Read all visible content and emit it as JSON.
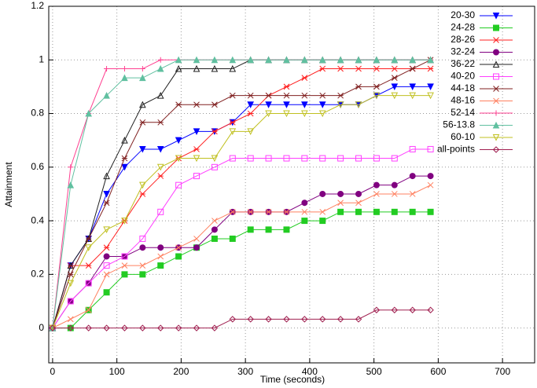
{
  "chart_data": {
    "type": "line",
    "x_label": "Time (seconds)",
    "y_label": "Attainment",
    "x": [
      0,
      28,
      56,
      84,
      112,
      140,
      168,
      196,
      224,
      252,
      280,
      308,
      336,
      364,
      392,
      420,
      448,
      476,
      504,
      532,
      560,
      588
    ],
    "xlim": [
      -6,
      750
    ],
    "ylim": [
      -0.13,
      1.2
    ],
    "xticks": [
      0,
      100,
      200,
      300,
      400,
      500,
      600,
      700
    ],
    "yticks": [
      0,
      0.2,
      0.4,
      0.6,
      0.8,
      1,
      1.2
    ],
    "grid": true,
    "legend": "top-right",
    "series": [
      {
        "name": "20-30",
        "color": "#0000ff",
        "marker": "triangle-down",
        "values": [
          0,
          0.233,
          0.333,
          0.5,
          0.6,
          0.667,
          0.667,
          0.7,
          0.733,
          0.733,
          0.767,
          0.833,
          0.833,
          0.833,
          0.833,
          0.833,
          0.833,
          0.833,
          0.867,
          0.9,
          0.9,
          0.9
        ]
      },
      {
        "name": "24-28",
        "color": "#22cc22",
        "marker": "square",
        "values": [
          0,
          0,
          0.067,
          0.133,
          0.2,
          0.2,
          0.233,
          0.267,
          0.3,
          0.333,
          0.333,
          0.367,
          0.367,
          0.367,
          0.4,
          0.4,
          0.433,
          0.433,
          0.433,
          0.433,
          0.433,
          0.433
        ]
      },
      {
        "name": "28-26",
        "color": "#ff2020",
        "marker": "asterisk",
        "values": [
          0,
          0.233,
          0.233,
          0.3,
          0.4,
          0.5,
          0.567,
          0.633,
          0.667,
          0.733,
          0.767,
          0.8,
          0.867,
          0.9,
          0.933,
          0.967,
          0.967,
          0.967,
          0.967,
          0.967,
          0.967,
          0.967
        ]
      },
      {
        "name": "32-24",
        "color": "#800080",
        "marker": "circle",
        "values": [
          0,
          0.1,
          0.167,
          0.267,
          0.267,
          0.3,
          0.3,
          0.3,
          0.3,
          0.367,
          0.433,
          0.433,
          0.433,
          0.433,
          0.467,
          0.5,
          0.5,
          0.5,
          0.533,
          0.533,
          0.567,
          0.567
        ]
      },
      {
        "name": "36-22",
        "color": "#202020",
        "marker": "triangle-open",
        "values": [
          0,
          0.233,
          0.333,
          0.567,
          0.7,
          0.833,
          0.867,
          0.967,
          0.967,
          0.967,
          0.967,
          1,
          1,
          1,
          1,
          1,
          1,
          1,
          1,
          1,
          1,
          1
        ]
      },
      {
        "name": "40-20",
        "color": "#ff40ff",
        "marker": "square-open",
        "values": [
          0,
          0.1,
          0.167,
          0.233,
          0.267,
          0.333,
          0.433,
          0.533,
          0.567,
          0.6,
          0.633,
          0.633,
          0.633,
          0.633,
          0.633,
          0.633,
          0.633,
          0.633,
          0.633,
          0.633,
          0.667,
          0.667
        ]
      },
      {
        "name": "44-18",
        "color": "#802020",
        "marker": "asterisk",
        "values": [
          0,
          0.2,
          0.333,
          0.467,
          0.633,
          0.767,
          0.767,
          0.833,
          0.833,
          0.833,
          0.867,
          0.867,
          0.867,
          0.867,
          0.867,
          0.867,
          0.867,
          0.9,
          0.9,
          0.933,
          0.967,
          1
        ]
      },
      {
        "name": "48-16",
        "color": "#ff8060",
        "marker": "x",
        "values": [
          0,
          0.033,
          0.067,
          0.2,
          0.233,
          0.233,
          0.267,
          0.3,
          0.333,
          0.4,
          0.433,
          0.433,
          0.433,
          0.433,
          0.433,
          0.433,
          0.467,
          0.467,
          0.5,
          0.5,
          0.5,
          0.533
        ]
      },
      {
        "name": "52-14",
        "color": "#ff4090",
        "marker": "plus",
        "values": [
          0,
          0.6,
          0.8,
          0.967,
          0.967,
          0.967,
          1,
          1,
          1,
          1,
          1,
          1,
          1,
          1,
          1,
          1,
          1,
          1,
          1,
          1,
          1,
          1
        ]
      },
      {
        "name": "56-13.8",
        "color": "#60c0a0",
        "marker": "triangle",
        "values": [
          0,
          0.533,
          0.8,
          0.867,
          0.933,
          0.933,
          0.967,
          1,
          1,
          1,
          1,
          1,
          1,
          1,
          1,
          1,
          1,
          1,
          1,
          1,
          1,
          1
        ]
      },
      {
        "name": "60-10",
        "color": "#c0c020",
        "marker": "triangle-down-open",
        "values": [
          0,
          0.167,
          0.3,
          0.367,
          0.4,
          0.533,
          0.6,
          0.633,
          0.633,
          0.633,
          0.733,
          0.733,
          0.8,
          0.8,
          0.8,
          0.8,
          0.833,
          0.833,
          0.867,
          0.867,
          0.867,
          0.867
        ]
      },
      {
        "name": "all-points",
        "color": "#a02050",
        "marker": "diamond-open",
        "values": [
          0,
          0,
          0,
          0,
          0,
          0,
          0,
          0,
          0,
          0,
          0.033,
          0.033,
          0.033,
          0.033,
          0.033,
          0.033,
          0.033,
          0.033,
          0.067,
          0.067,
          0.067,
          0.067
        ]
      }
    ]
  }
}
